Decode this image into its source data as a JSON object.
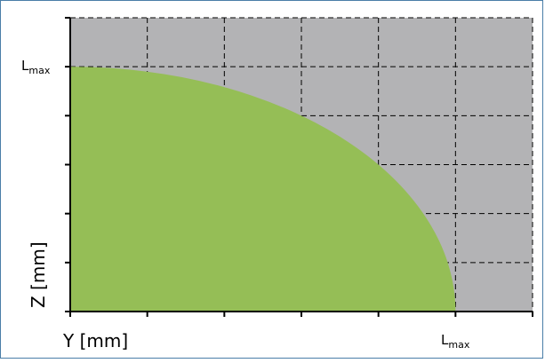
{
  "chart_data": {
    "type": "area",
    "title": "",
    "xlabel": "Y [mm]",
    "ylabel": "Z [mm]",
    "lmax_label": {
      "main": "L",
      "sub": "max"
    },
    "x_domain": [
      0,
      1.2
    ],
    "y_domain": [
      0,
      1.2
    ],
    "x_ticks": [
      0,
      0.2,
      0.4,
      0.6,
      0.8,
      1.0,
      1.2
    ],
    "y_ticks": [
      0,
      0.2,
      0.4,
      0.6,
      0.8,
      1.0,
      1.2
    ],
    "grid": true,
    "grid_style": "dashed",
    "plot_background": "#b3b3b5",
    "fill_color": "#95be56",
    "series": [
      {
        "region": "quarter-ellipse",
        "semi_axis_y": 1.0,
        "semi_axis_z": 1.0,
        "unit": "Lmax"
      }
    ]
  }
}
